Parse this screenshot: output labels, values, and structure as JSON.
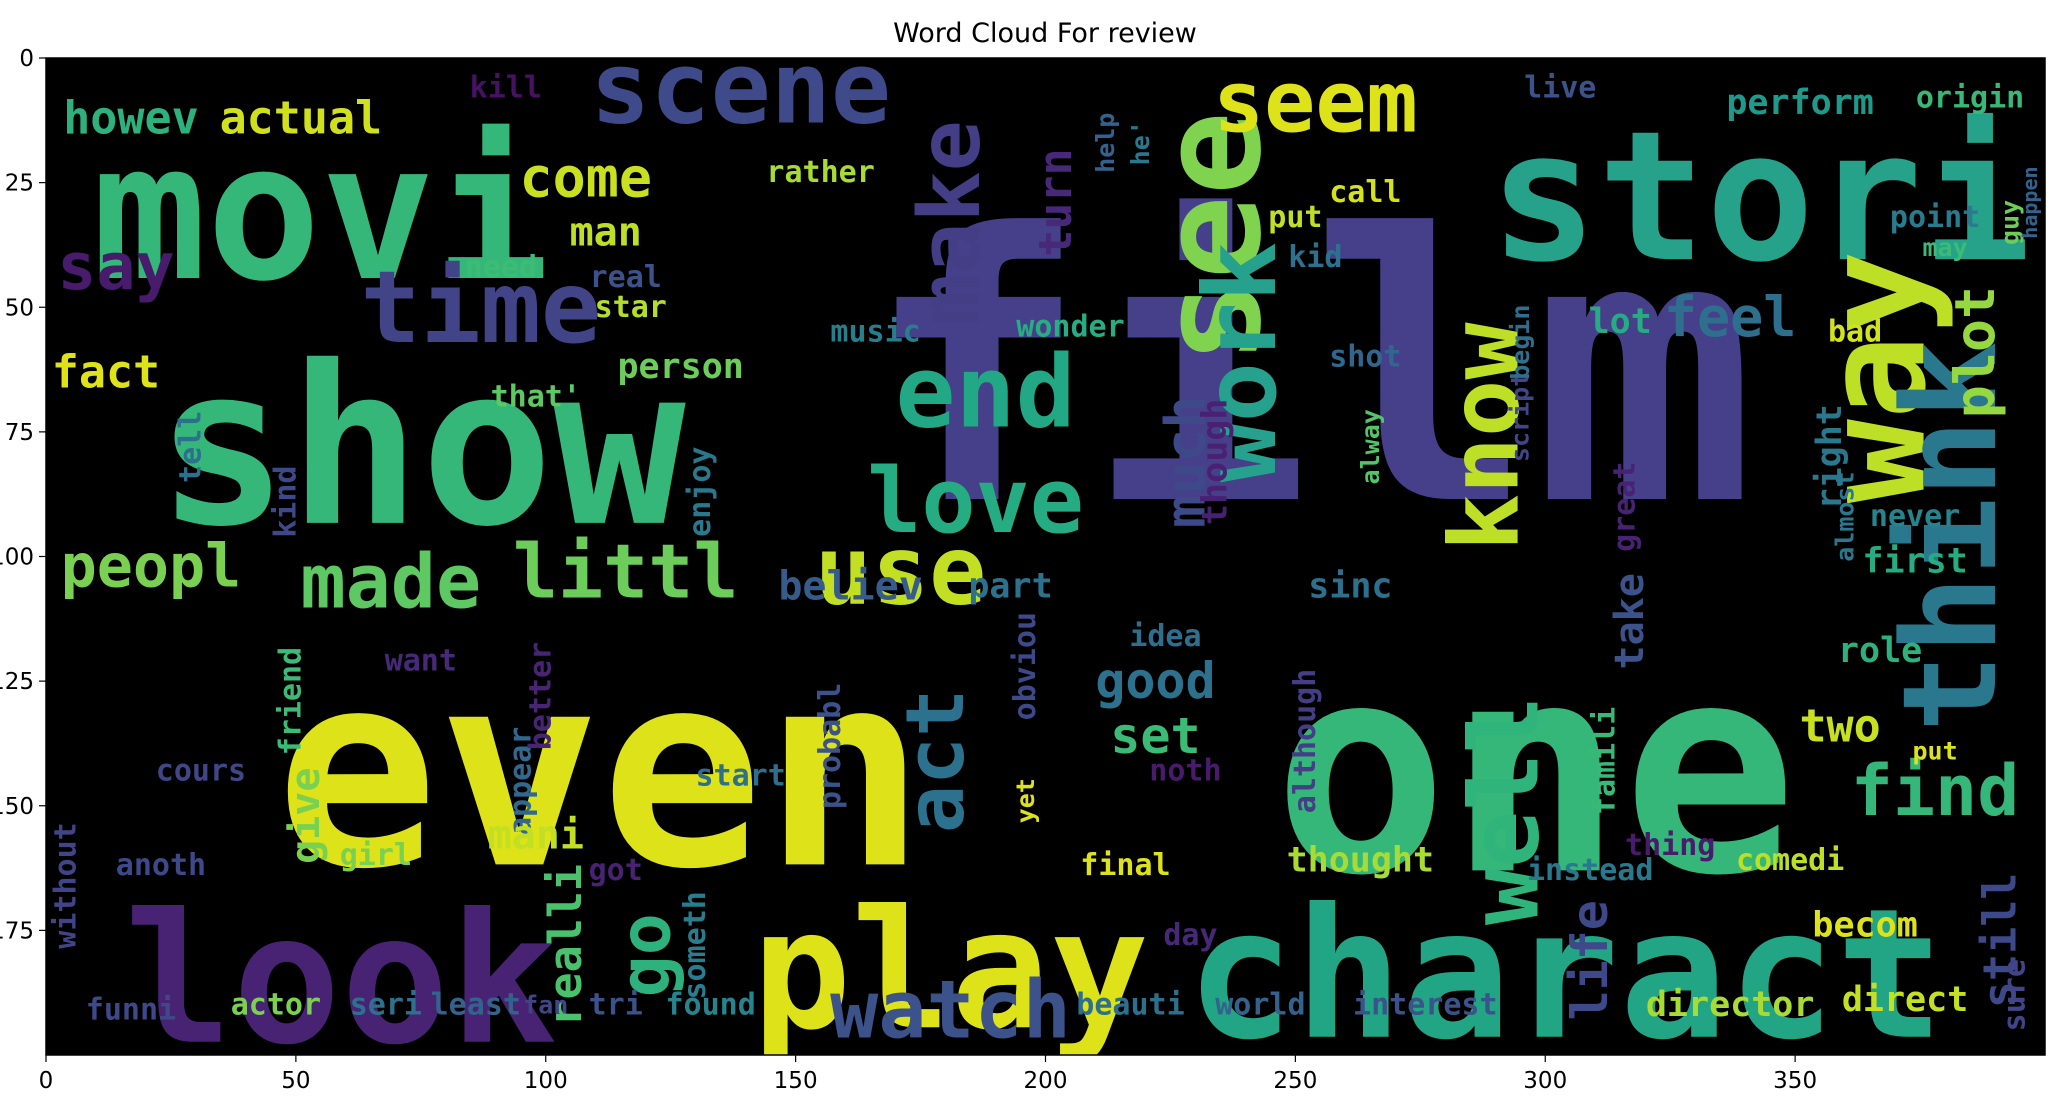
{
  "chart_data": {
    "type": "wordcloud",
    "title": "Word Cloud For review",
    "xlim": [
      0,
      400
    ],
    "ylim": [
      200,
      0
    ],
    "xticks": [
      0,
      50,
      100,
      150,
      200,
      250,
      300,
      350
    ],
    "yticks": [
      0,
      25,
      50,
      75,
      100,
      125,
      150,
      175
    ],
    "xtick_labels": [
      "0",
      "50",
      "100",
      "150",
      "200",
      "250",
      "300",
      "350"
    ],
    "ytick_labels": [
      "0",
      "25",
      "50",
      "75",
      "100",
      "125",
      "150",
      "175"
    ],
    "background": "#000000",
    "grid": false,
    "words": [
      {
        "text": "film",
        "x": 253,
        "y": 63,
        "size": 74,
        "color": "#46408a",
        "rot": 0
      },
      {
        "text": "one",
        "x": 298,
        "y": 143,
        "size": 58,
        "color": "#35b779",
        "rot": 0
      },
      {
        "text": "even",
        "x": 111,
        "y": 143,
        "size": 54,
        "color": "#dde318",
        "rot": 0
      },
      {
        "text": "show",
        "x": 75,
        "y": 78,
        "size": 44,
        "color": "#35b779",
        "rot": 0
      },
      {
        "text": "movi",
        "x": 55,
        "y": 31,
        "size": 38,
        "color": "#35b779",
        "rot": 0
      },
      {
        "text": "stori",
        "x": 343,
        "y": 28,
        "size": 36,
        "color": "#25a289",
        "rot": 0
      },
      {
        "text": "charact",
        "x": 304,
        "y": 184,
        "size": 36,
        "color": "#22a584",
        "rot": 0
      },
      {
        "text": "look",
        "x": 59,
        "y": 185,
        "size": 36,
        "color": "#482374",
        "rot": 0
      },
      {
        "text": "play",
        "x": 181,
        "y": 183,
        "size": 33,
        "color": "#dde318",
        "rot": 0
      },
      {
        "text": "see",
        "x": 233,
        "y": 36,
        "size": 28,
        "color": "#7fd34e",
        "rot": -90
      },
      {
        "text": "way",
        "x": 366,
        "y": 64,
        "size": 28,
        "color": "#bddf26",
        "rot": -90
      },
      {
        "text": "think",
        "x": 381,
        "y": 96,
        "size": 26,
        "color": "#2a788e",
        "rot": -90
      },
      {
        "text": "end",
        "x": 188,
        "y": 67,
        "size": 20,
        "color": "#22a884",
        "rot": 0
      },
      {
        "text": "love",
        "x": 186,
        "y": 89,
        "size": 18,
        "color": "#25ac82",
        "rot": 0
      },
      {
        "text": "use",
        "x": 171,
        "y": 103,
        "size": 19,
        "color": "#c2df23",
        "rot": 0
      },
      {
        "text": "time",
        "x": 87,
        "y": 50,
        "size": 20,
        "color": "#414487",
        "rot": 0
      },
      {
        "text": "scene",
        "x": 139,
        "y": 6,
        "size": 20,
        "color": "#3e4a89",
        "rot": 0
      },
      {
        "text": "seem",
        "x": 254,
        "y": 9,
        "size": 17,
        "color": "#dde318",
        "rot": 0
      },
      {
        "text": "know",
        "x": 288,
        "y": 76,
        "size": 19,
        "color": "#bddf26",
        "rot": -90
      },
      {
        "text": "work",
        "x": 239,
        "y": 61,
        "size": 20,
        "color": "#25a18e",
        "rot": -90
      },
      {
        "text": "well",
        "x": 292,
        "y": 151,
        "size": 19,
        "color": "#2fb47c",
        "rot": -90
      },
      {
        "text": "make",
        "x": 181,
        "y": 33,
        "size": 17,
        "color": "#433e85",
        "rot": -90
      },
      {
        "text": "watch",
        "x": 181,
        "y": 191,
        "size": 16,
        "color": "#3b528b",
        "rot": 0
      },
      {
        "text": "made",
        "x": 69,
        "y": 105,
        "size": 15,
        "color": "#5ec962",
        "rot": 0
      },
      {
        "text": "littl",
        "x": 116,
        "y": 103,
        "size": 15,
        "color": "#6ccd5a",
        "rot": 0
      },
      {
        "text": "peopl",
        "x": 21,
        "y": 102,
        "size": 12,
        "color": "#7ad151",
        "rot": 0
      },
      {
        "text": "say",
        "x": 14,
        "y": 42,
        "size": 13,
        "color": "#481b6d",
        "rot": 0
      },
      {
        "text": "fact",
        "x": 12,
        "y": 63,
        "size": 9,
        "color": "#dde318",
        "rot": 0
      },
      {
        "text": "howev",
        "x": 17,
        "y": 12,
        "size": 9,
        "color": "#2db27d",
        "rot": 0
      },
      {
        "text": "actual",
        "x": 51,
        "y": 12,
        "size": 9,
        "color": "#d0e11c",
        "rot": 0
      },
      {
        "text": "come",
        "x": 108,
        "y": 24,
        "size": 11,
        "color": "#c8e020",
        "rot": 0
      },
      {
        "text": "man",
        "x": 112,
        "y": 35,
        "size": 8,
        "color": "#bddf26",
        "rot": 0
      },
      {
        "text": "need",
        "x": 91,
        "y": 42,
        "size": 6,
        "color": "#3fbc73",
        "rot": 0
      },
      {
        "text": "real",
        "x": 116,
        "y": 44,
        "size": 6,
        "color": "#3b528b",
        "rot": 0
      },
      {
        "text": "star",
        "x": 117,
        "y": 50,
        "size": 6,
        "color": "#b5de2b",
        "rot": 0
      },
      {
        "text": "rather",
        "x": 155,
        "y": 23,
        "size": 6,
        "color": "#a8db34",
        "rot": 0
      },
      {
        "text": "kill",
        "x": 92,
        "y": 6,
        "size": 6,
        "color": "#471164",
        "rot": 0
      },
      {
        "text": "turn",
        "x": 202,
        "y": 29,
        "size": 9,
        "color": "#482878",
        "rot": -90
      },
      {
        "text": "help",
        "x": 212,
        "y": 17,
        "size": 5,
        "color": "#34618d",
        "rot": -90
      },
      {
        "text": "he'",
        "x": 219,
        "y": 17,
        "size": 5,
        "color": "#2a788e",
        "rot": -90
      },
      {
        "text": "call",
        "x": 264,
        "y": 27,
        "size": 6,
        "color": "#d5e21a",
        "rot": 0
      },
      {
        "text": "put",
        "x": 250,
        "y": 32,
        "size": 6,
        "color": "#c0df25",
        "rot": 0
      },
      {
        "text": "kid",
        "x": 254,
        "y": 40,
        "size": 6,
        "color": "#2c728e",
        "rot": 0
      },
      {
        "text": "live",
        "x": 303,
        "y": 6,
        "size": 6,
        "color": "#3b528b",
        "rot": 0
      },
      {
        "text": "perform",
        "x": 351,
        "y": 9,
        "size": 7,
        "color": "#1f9a8a",
        "rot": 0
      },
      {
        "text": "origin",
        "x": 385,
        "y": 8,
        "size": 6,
        "color": "#38b977",
        "rot": 0
      },
      {
        "text": "point",
        "x": 378,
        "y": 32,
        "size": 6,
        "color": "#297b8e",
        "rot": 0
      },
      {
        "text": "may",
        "x": 380,
        "y": 38,
        "size": 5,
        "color": "#3bbb75",
        "rot": 0
      },
      {
        "text": "guy",
        "x": 393,
        "y": 33,
        "size": 5,
        "color": "#6ccd5a",
        "rot": -90
      },
      {
        "text": "happen",
        "x": 397,
        "y": 29,
        "size": 4,
        "color": "#33638d",
        "rot": -90
      },
      {
        "text": "music",
        "x": 166,
        "y": 55,
        "size": 6,
        "color": "#277f8e",
        "rot": 0
      },
      {
        "text": "wonder",
        "x": 205,
        "y": 54,
        "size": 6,
        "color": "#27ad81",
        "rot": 0
      },
      {
        "text": "lot",
        "x": 315,
        "y": 53,
        "size": 7,
        "color": "#25ac82",
        "rot": 0
      },
      {
        "text": "feel",
        "x": 337,
        "y": 52,
        "size": 11,
        "color": "#2e6f8e",
        "rot": 0
      },
      {
        "text": "bad",
        "x": 362,
        "y": 55,
        "size": 6,
        "color": "#d2e21b",
        "rot": 0
      },
      {
        "text": "plot",
        "x": 386,
        "y": 59,
        "size": 11,
        "color": "#95d840",
        "rot": -90
      },
      {
        "text": "much",
        "x": 228,
        "y": 81,
        "size": 11,
        "color": "#3e4989",
        "rot": -90
      },
      {
        "text": "though",
        "x": 234,
        "y": 81,
        "size": 7,
        "color": "#482173",
        "rot": -90
      },
      {
        "text": "shot",
        "x": 264,
        "y": 60,
        "size": 6,
        "color": "#31678e",
        "rot": 0
      },
      {
        "text": "alway",
        "x": 265,
        "y": 78,
        "size": 5,
        "color": "#52c569",
        "rot": -90
      },
      {
        "text": "script",
        "x": 295,
        "y": 72,
        "size": 5,
        "color": "#404688",
        "rot": -90
      },
      {
        "text": "begin",
        "x": 295,
        "y": 57,
        "size": 5,
        "color": "#2e6f8e",
        "rot": -90
      },
      {
        "text": "person",
        "x": 127,
        "y": 62,
        "size": 7,
        "color": "#6ccd5a",
        "rot": 0
      },
      {
        "text": "that'",
        "x": 98,
        "y": 68,
        "size": 6,
        "color": "#5ec962",
        "rot": 0
      },
      {
        "text": "tell",
        "x": 29,
        "y": 78,
        "size": 6,
        "color": "#2d708e",
        "rot": -90
      },
      {
        "text": "kind",
        "x": 48,
        "y": 89,
        "size": 6,
        "color": "#3e4989",
        "rot": -90
      },
      {
        "text": "enjoy",
        "x": 131,
        "y": 87,
        "size": 6,
        "color": "#29798e",
        "rot": -90
      },
      {
        "text": "believ",
        "x": 161,
        "y": 106,
        "size": 8,
        "color": "#365c8d",
        "rot": 0
      },
      {
        "text": "part",
        "x": 193,
        "y": 106,
        "size": 7,
        "color": "#2c728e",
        "rot": 0
      },
      {
        "text": "sinc",
        "x": 261,
        "y": 106,
        "size": 7,
        "color": "#2d708e",
        "rot": 0
      },
      {
        "text": "right",
        "x": 357,
        "y": 80,
        "size": 7,
        "color": "#2a788e",
        "rot": -90
      },
      {
        "text": "almost",
        "x": 360,
        "y": 92,
        "size": 5,
        "color": "#2a788e",
        "rot": -90
      },
      {
        "text": "great",
        "x": 316,
        "y": 90,
        "size": 6,
        "color": "#482374",
        "rot": -90
      },
      {
        "text": "never",
        "x": 374,
        "y": 92,
        "size": 6,
        "color": "#25848e",
        "rot": 0
      },
      {
        "text": "first",
        "x": 374,
        "y": 101,
        "size": 7,
        "color": "#25ac82",
        "rot": 0
      },
      {
        "text": "take",
        "x": 317,
        "y": 113,
        "size": 8,
        "color": "#3b528b",
        "rot": -90
      },
      {
        "text": "famili",
        "x": 312,
        "y": 141,
        "size": 6,
        "color": "#38b977",
        "rot": -90
      },
      {
        "text": "role",
        "x": 367,
        "y": 119,
        "size": 7,
        "color": "#2db27d",
        "rot": 0
      },
      {
        "text": "two",
        "x": 359,
        "y": 134,
        "size": 9,
        "color": "#c8e020",
        "rot": 0
      },
      {
        "text": "find",
        "x": 378,
        "y": 147,
        "size": 14,
        "color": "#35b779",
        "rot": 0
      },
      {
        "text": "comedi",
        "x": 349,
        "y": 161,
        "size": 6,
        "color": "#bddf26",
        "rot": 0
      },
      {
        "text": "still",
        "x": 391,
        "y": 177,
        "size": 9,
        "color": "#3e4989",
        "rot": -90
      },
      {
        "text": "becom",
        "x": 364,
        "y": 174,
        "size": 7,
        "color": "#dde318",
        "rot": 0
      },
      {
        "text": "sure",
        "x": 394,
        "y": 188,
        "size": 6,
        "color": "#414487",
        "rot": -90
      },
      {
        "text": "director",
        "x": 337,
        "y": 190,
        "size": 7,
        "color": "#a8db34",
        "rot": 0
      },
      {
        "text": "direct",
        "x": 372,
        "y": 189,
        "size": 7,
        "color": "#c5e021",
        "rot": 0
      },
      {
        "text": "life",
        "x": 309,
        "y": 181,
        "size": 10,
        "color": "#3e4989",
        "rot": -90
      },
      {
        "text": "interest",
        "x": 276,
        "y": 190,
        "size": 6,
        "color": "#3b528b",
        "rot": 0
      },
      {
        "text": "world",
        "x": 243,
        "y": 190,
        "size": 6,
        "color": "#33628d",
        "rot": 0
      },
      {
        "text": "beauti",
        "x": 217,
        "y": 190,
        "size": 6,
        "color": "#2d708e",
        "rot": 0
      },
      {
        "text": "final",
        "x": 216,
        "y": 162,
        "size": 6,
        "color": "#dde318",
        "rot": 0
      },
      {
        "text": "thought",
        "x": 263,
        "y": 161,
        "size": 7,
        "color": "#a8db34",
        "rot": 0
      },
      {
        "text": "instead",
        "x": 309,
        "y": 163,
        "size": 6,
        "color": "#2a788e",
        "rot": 0
      },
      {
        "text": "thing",
        "x": 325,
        "y": 158,
        "size": 6,
        "color": "#481b6d",
        "rot": 0
      },
      {
        "text": "although",
        "x": 252,
        "y": 137,
        "size": 6,
        "color": "#433e85",
        "rot": -90
      },
      {
        "text": "good",
        "x": 222,
        "y": 125,
        "size": 10,
        "color": "#2c728e",
        "rot": 0
      },
      {
        "text": "set",
        "x": 222,
        "y": 136,
        "size": 10,
        "color": "#3bbb75",
        "rot": 0
      },
      {
        "text": "idea",
        "x": 224,
        "y": 116,
        "size": 6,
        "color": "#2e6f8e",
        "rot": 0
      },
      {
        "text": "act",
        "x": 178,
        "y": 141,
        "size": 16,
        "color": "#2c728e",
        "rot": -90
      },
      {
        "text": "obviou",
        "x": 196,
        "y": 122,
        "size": 6,
        "color": "#3e4989",
        "rot": -90
      },
      {
        "text": "probabl",
        "x": 157,
        "y": 138,
        "size": 6,
        "color": "#3b528b",
        "rot": -90
      },
      {
        "text": "start",
        "x": 139,
        "y": 144,
        "size": 6,
        "color": "#2e6f8e",
        "rot": 0
      },
      {
        "text": "yet",
        "x": 196,
        "y": 149,
        "size": 5,
        "color": "#dde318",
        "rot": -90
      },
      {
        "text": "appear",
        "x": 95,
        "y": 145,
        "size": 6,
        "color": "#31688e",
        "rot": -90
      },
      {
        "text": "better",
        "x": 99,
        "y": 128,
        "size": 6,
        "color": "#482475",
        "rot": -90
      },
      {
        "text": "friend",
        "x": 49,
        "y": 129,
        "size": 6,
        "color": "#3bbb75",
        "rot": -90
      },
      {
        "text": "give",
        "x": 52,
        "y": 152,
        "size": 8,
        "color": "#7ad151",
        "rot": -90
      },
      {
        "text": "want",
        "x": 75,
        "y": 121,
        "size": 6,
        "color": "#482878",
        "rot": 0
      },
      {
        "text": "mani",
        "x": 98,
        "y": 156,
        "size": 8,
        "color": "#c2df23",
        "rot": 0
      },
      {
        "text": "girl",
        "x": 66,
        "y": 160,
        "size": 6,
        "color": "#7ad151",
        "rot": 0
      },
      {
        "text": "anoth",
        "x": 23,
        "y": 162,
        "size": 6,
        "color": "#3e4989",
        "rot": 0
      },
      {
        "text": "without",
        "x": 4,
        "y": 166,
        "size": 6,
        "color": "#414487",
        "rot": -90
      },
      {
        "text": "got",
        "x": 114,
        "y": 163,
        "size": 6,
        "color": "#482374",
        "rot": 0
      },
      {
        "text": "go",
        "x": 120,
        "y": 180,
        "size": 14,
        "color": "#2db27d",
        "rot": -90
      },
      {
        "text": "realli",
        "x": 104,
        "y": 178,
        "size": 9,
        "color": "#4ac16d",
        "rot": -90
      },
      {
        "text": "someth",
        "x": 130,
        "y": 178,
        "size": 6,
        "color": "#287d8e",
        "rot": -90
      },
      {
        "text": "funni",
        "x": 17,
        "y": 191,
        "size": 6,
        "color": "#3e4989",
        "rot": 0
      },
      {
        "text": "actor",
        "x": 46,
        "y": 190,
        "size": 6,
        "color": "#7ad151",
        "rot": 0
      },
      {
        "text": "seri",
        "x": 68,
        "y": 190,
        "size": 6,
        "color": "#2c728e",
        "rot": 0
      },
      {
        "text": "least",
        "x": 86,
        "y": 190,
        "size": 6,
        "color": "#33638d",
        "rot": 0
      },
      {
        "text": "fan",
        "x": 100,
        "y": 190,
        "size": 5,
        "color": "#414487",
        "rot": 0
      },
      {
        "text": "tri",
        "x": 114,
        "y": 190,
        "size": 6,
        "color": "#3b528b",
        "rot": 0
      },
      {
        "text": "found",
        "x": 133,
        "y": 190,
        "size": 6,
        "color": "#25848e",
        "rot": 0
      },
      {
        "text": "day",
        "x": 229,
        "y": 176,
        "size": 6,
        "color": "#482878",
        "rot": 0
      },
      {
        "text": "cours",
        "x": 31,
        "y": 143,
        "size": 6,
        "color": "#404688",
        "rot": 0
      },
      {
        "text": "noth",
        "x": 228,
        "y": 143,
        "size": 6,
        "color": "#481b6d",
        "rot": 0
      },
      {
        "text": "put",
        "x": 378,
        "y": 139,
        "size": 5,
        "color": "#dde318",
        "rot": 0
      }
    ]
  }
}
